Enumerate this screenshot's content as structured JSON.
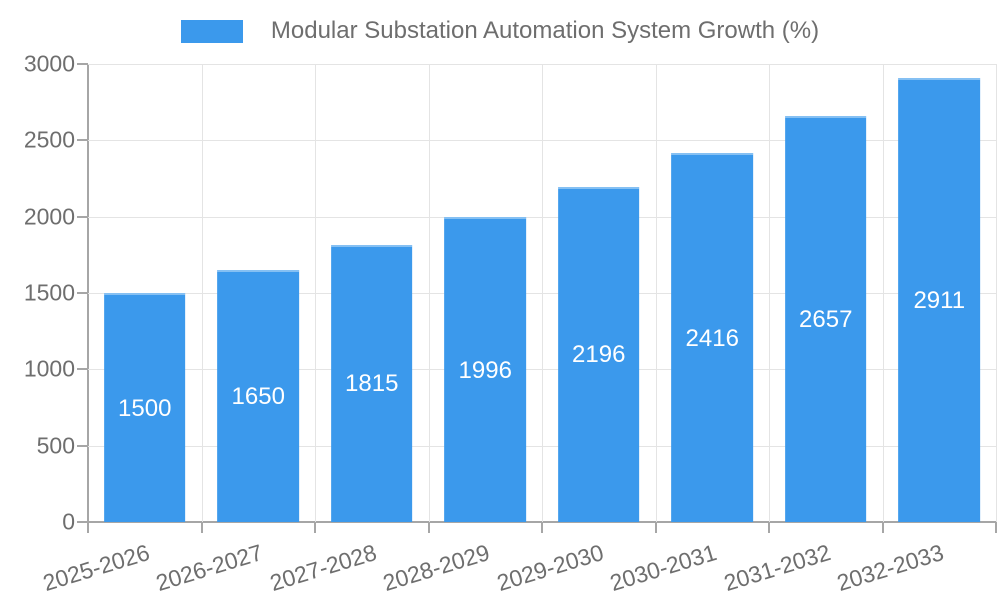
{
  "chart_data": {
    "type": "bar",
    "legend_label": "Modular Substation Automation System Growth (%)",
    "legend_position": "top-center",
    "categories": [
      "2025-2026",
      "2026-2027",
      "2027-2028",
      "2028-2029",
      "2029-2030",
      "2030-2031",
      "2031-2032",
      "2032-2033"
    ],
    "values": [
      1500,
      1650,
      1815,
      1996,
      2196,
      2416,
      2657,
      2911
    ],
    "value_labels": "white, centered inside bars",
    "xlabel": "",
    "ylabel": "",
    "ylim": [
      0,
      3000
    ],
    "yticks": [
      0,
      500,
      1000,
      1500,
      2000,
      2500,
      3000
    ],
    "grid": "horizontal and vertical category-boundary gridlines",
    "x_tick_rotation_deg": -17,
    "colors": {
      "bar": "#3b99ec",
      "gridline": "#e4e4e4",
      "axis": "#a6a6a6",
      "tick_text": "#6e6e6e",
      "bar_label_text": "#ffffff",
      "background": "#ffffff"
    }
  }
}
